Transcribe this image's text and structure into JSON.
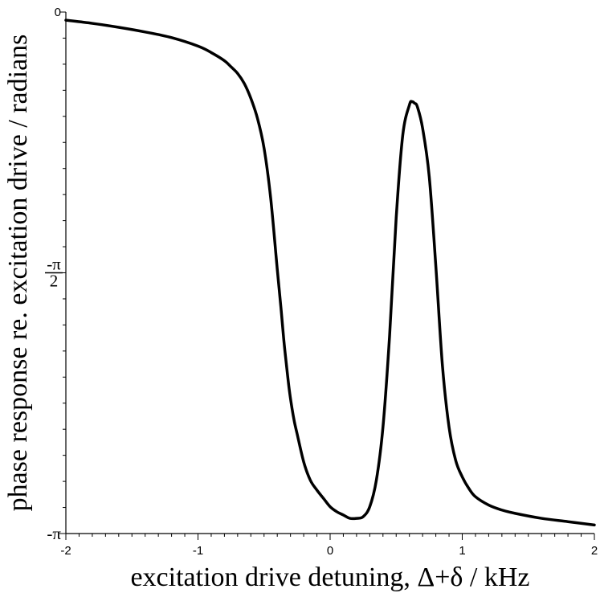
{
  "chart_data": {
    "type": "line",
    "title": "",
    "xlabel": "excitation drive detuning, Δ+δ / kHz",
    "ylabel": "phase response re. excitation drive / radians",
    "xlim": [
      -2,
      2
    ],
    "ylim": [
      -3.14159,
      0
    ],
    "x_major_ticks": [
      -2,
      -1,
      0,
      1,
      2
    ],
    "x_tick_labels": [
      "-2",
      "-1",
      "0",
      "1",
      "2"
    ],
    "x_minor_step": 0.1,
    "y_ticks": [
      {
        "value": 0,
        "label": "0"
      },
      {
        "value": -1.5708,
        "label": "-π/2",
        "num": "-π",
        "den": "2"
      },
      {
        "value": -3.14159,
        "label": "-π"
      }
    ],
    "y_minor_step": 0.15708,
    "grid": false,
    "legend": "none",
    "line_color": "#000000",
    "series": [
      {
        "x": [
          -2.0,
          -1.8,
          -1.6,
          -1.4,
          -1.2,
          -1.0,
          -0.9,
          -0.8,
          -0.75,
          -0.7,
          -0.65,
          -0.6,
          -0.55,
          -0.5,
          -0.45,
          -0.4,
          -0.37,
          -0.35,
          -0.33,
          -0.31,
          -0.29,
          -0.27,
          -0.25,
          -0.2,
          -0.15,
          -0.1,
          -0.05,
          0.0,
          0.05,
          0.1,
          0.15,
          0.2,
          0.25,
          0.3,
          0.35,
          0.4,
          0.45,
          0.5,
          0.55,
          0.6,
          0.62,
          0.64,
          0.66,
          0.7,
          0.75,
          0.8,
          0.85,
          0.9,
          0.95,
          1.0,
          1.05,
          1.1,
          1.2,
          1.3,
          1.4,
          1.6,
          1.8,
          2.0
        ],
        "y": [
          -0.049,
          -0.068,
          -0.092,
          -0.12,
          -0.154,
          -0.205,
          -0.244,
          -0.293,
          -0.33,
          -0.37,
          -0.43,
          -0.52,
          -0.64,
          -0.82,
          -1.12,
          -1.55,
          -1.8,
          -1.98,
          -2.13,
          -2.27,
          -2.38,
          -2.47,
          -2.54,
          -2.71,
          -2.82,
          -2.88,
          -2.93,
          -2.98,
          -3.01,
          -3.03,
          -3.05,
          -3.05,
          -3.04,
          -2.98,
          -2.82,
          -2.5,
          -1.95,
          -1.24,
          -0.74,
          -0.56,
          -0.54,
          -0.55,
          -0.57,
          -0.7,
          -0.99,
          -1.53,
          -2.13,
          -2.5,
          -2.7,
          -2.8,
          -2.87,
          -2.92,
          -2.97,
          -3.0,
          -3.02,
          -3.05,
          -3.07,
          -3.09
        ]
      }
    ]
  }
}
